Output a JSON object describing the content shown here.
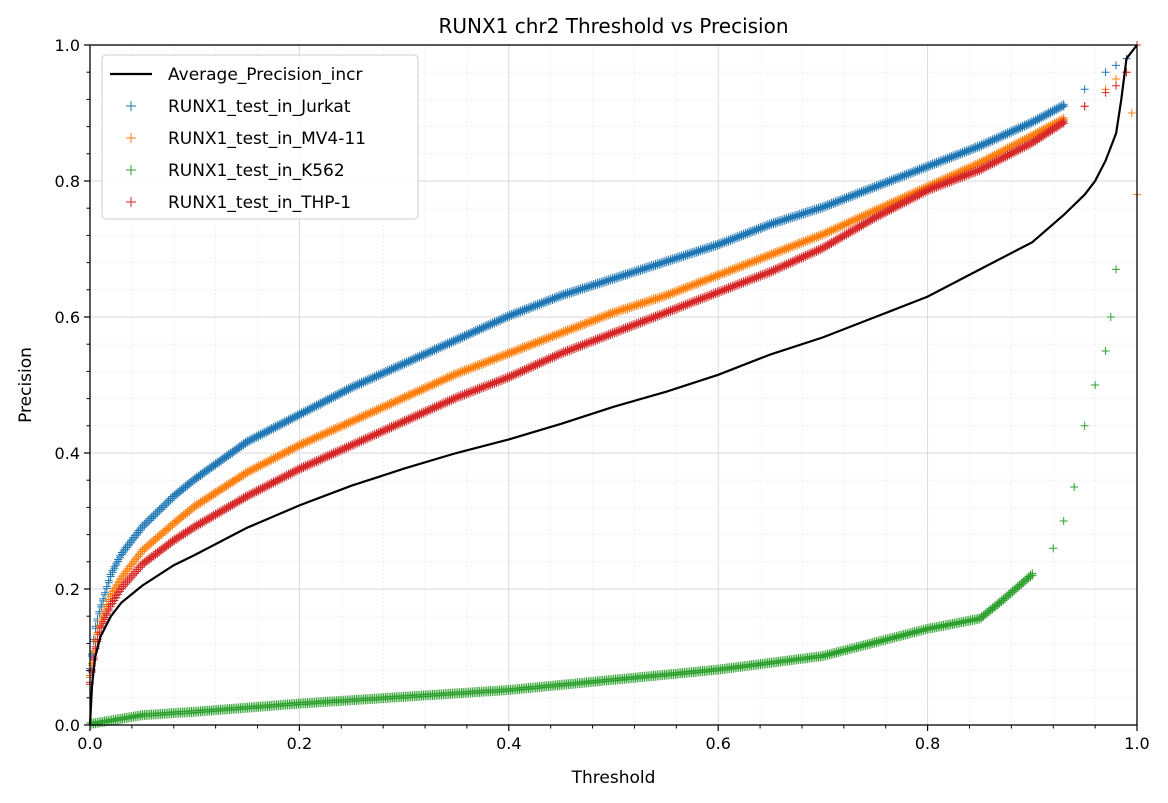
{
  "chart_data": {
    "type": "scatter",
    "title": "RUNX1 chr2 Threshold vs Precision",
    "xlabel": "Threshold",
    "ylabel": "Precision",
    "xlim": [
      0.0,
      1.0
    ],
    "ylim": [
      0.0,
      1.0
    ],
    "xticks": [
      "0.0",
      "0.2",
      "0.4",
      "0.6",
      "0.8",
      "1.0"
    ],
    "yticks": [
      "0.0",
      "0.2",
      "0.4",
      "0.6",
      "0.8",
      "1.0"
    ],
    "grid": true,
    "minor_grid": true,
    "legend_placement": "upper-left",
    "series": [
      {
        "name": "Average_Precision_incr",
        "kind": "line",
        "color": "#000000",
        "x": [
          0.0,
          0.002,
          0.005,
          0.01,
          0.02,
          0.03,
          0.05,
          0.08,
          0.1,
          0.15,
          0.2,
          0.25,
          0.3,
          0.35,
          0.4,
          0.45,
          0.5,
          0.55,
          0.6,
          0.65,
          0.7,
          0.75,
          0.8,
          0.85,
          0.9,
          0.93,
          0.95,
          0.96,
          0.97,
          0.98,
          0.985,
          0.99,
          1.0
        ],
        "y": [
          0.0,
          0.06,
          0.1,
          0.13,
          0.16,
          0.18,
          0.205,
          0.235,
          0.25,
          0.29,
          0.323,
          0.352,
          0.377,
          0.4,
          0.42,
          0.443,
          0.468,
          0.49,
          0.515,
          0.545,
          0.57,
          0.6,
          0.63,
          0.67,
          0.71,
          0.75,
          0.78,
          0.8,
          0.83,
          0.87,
          0.92,
          0.98,
          1.0
        ]
      },
      {
        "name": "RUNX1_test_in_Jurkat",
        "kind": "points",
        "color": "#1f77b4",
        "x": [
          0.0,
          0.005,
          0.01,
          0.02,
          0.03,
          0.05,
          0.08,
          0.1,
          0.15,
          0.2,
          0.25,
          0.3,
          0.35,
          0.4,
          0.45,
          0.5,
          0.55,
          0.6,
          0.65,
          0.7,
          0.75,
          0.8,
          0.85,
          0.9,
          0.93,
          0.95,
          0.97,
          0.98,
          0.99,
          1.0
        ],
        "y": [
          0.08,
          0.14,
          0.17,
          0.22,
          0.25,
          0.29,
          0.335,
          0.36,
          0.415,
          0.455,
          0.495,
          0.53,
          0.565,
          0.6,
          0.63,
          0.655,
          0.68,
          0.705,
          0.735,
          0.76,
          0.79,
          0.82,
          0.85,
          0.885,
          0.91,
          0.935,
          0.96,
          0.97,
          0.98,
          1.0
        ]
      },
      {
        "name": "RUNX1_test_in_MV4-11",
        "kind": "points",
        "color": "#ff7f0e",
        "x": [
          0.0,
          0.005,
          0.01,
          0.02,
          0.03,
          0.05,
          0.08,
          0.1,
          0.15,
          0.2,
          0.25,
          0.3,
          0.35,
          0.4,
          0.45,
          0.5,
          0.55,
          0.6,
          0.65,
          0.7,
          0.75,
          0.8,
          0.85,
          0.9,
          0.93,
          0.95,
          0.97,
          0.98,
          0.99,
          0.995,
          1.0
        ],
        "y": [
          0.07,
          0.12,
          0.15,
          0.19,
          0.215,
          0.255,
          0.295,
          0.32,
          0.37,
          0.41,
          0.445,
          0.48,
          0.515,
          0.545,
          0.575,
          0.605,
          0.63,
          0.66,
          0.69,
          0.72,
          0.755,
          0.79,
          0.825,
          0.865,
          0.89,
          0.91,
          0.935,
          0.95,
          0.96,
          0.9,
          0.78
        ]
      },
      {
        "name": "RUNX1_test_in_K562",
        "kind": "points",
        "color": "#2ca02c",
        "x": [
          0.0,
          0.05,
          0.1,
          0.2,
          0.3,
          0.4,
          0.5,
          0.6,
          0.7,
          0.75,
          0.8,
          0.85,
          0.87,
          0.9,
          0.92,
          0.93,
          0.94,
          0.95,
          0.96,
          0.97,
          0.975,
          0.98
        ],
        "y": [
          0.0,
          0.013,
          0.018,
          0.03,
          0.04,
          0.05,
          0.065,
          0.08,
          0.1,
          0.12,
          0.14,
          0.155,
          0.18,
          0.22,
          0.26,
          0.3,
          0.35,
          0.44,
          0.5,
          0.55,
          0.6,
          0.67
        ]
      },
      {
        "name": "RUNX1_test_in_THP-1",
        "kind": "points",
        "color": "#d62728",
        "x": [
          0.0,
          0.005,
          0.01,
          0.02,
          0.03,
          0.05,
          0.08,
          0.1,
          0.15,
          0.2,
          0.25,
          0.3,
          0.35,
          0.4,
          0.45,
          0.5,
          0.55,
          0.6,
          0.65,
          0.7,
          0.75,
          0.8,
          0.85,
          0.9,
          0.93,
          0.95,
          0.97,
          0.98,
          0.99,
          1.0
        ],
        "y": [
          0.06,
          0.11,
          0.14,
          0.175,
          0.2,
          0.235,
          0.27,
          0.29,
          0.335,
          0.375,
          0.41,
          0.445,
          0.48,
          0.51,
          0.545,
          0.575,
          0.605,
          0.635,
          0.665,
          0.7,
          0.745,
          0.785,
          0.815,
          0.855,
          0.885,
          0.91,
          0.93,
          0.94,
          0.96,
          1.0
        ]
      }
    ]
  }
}
